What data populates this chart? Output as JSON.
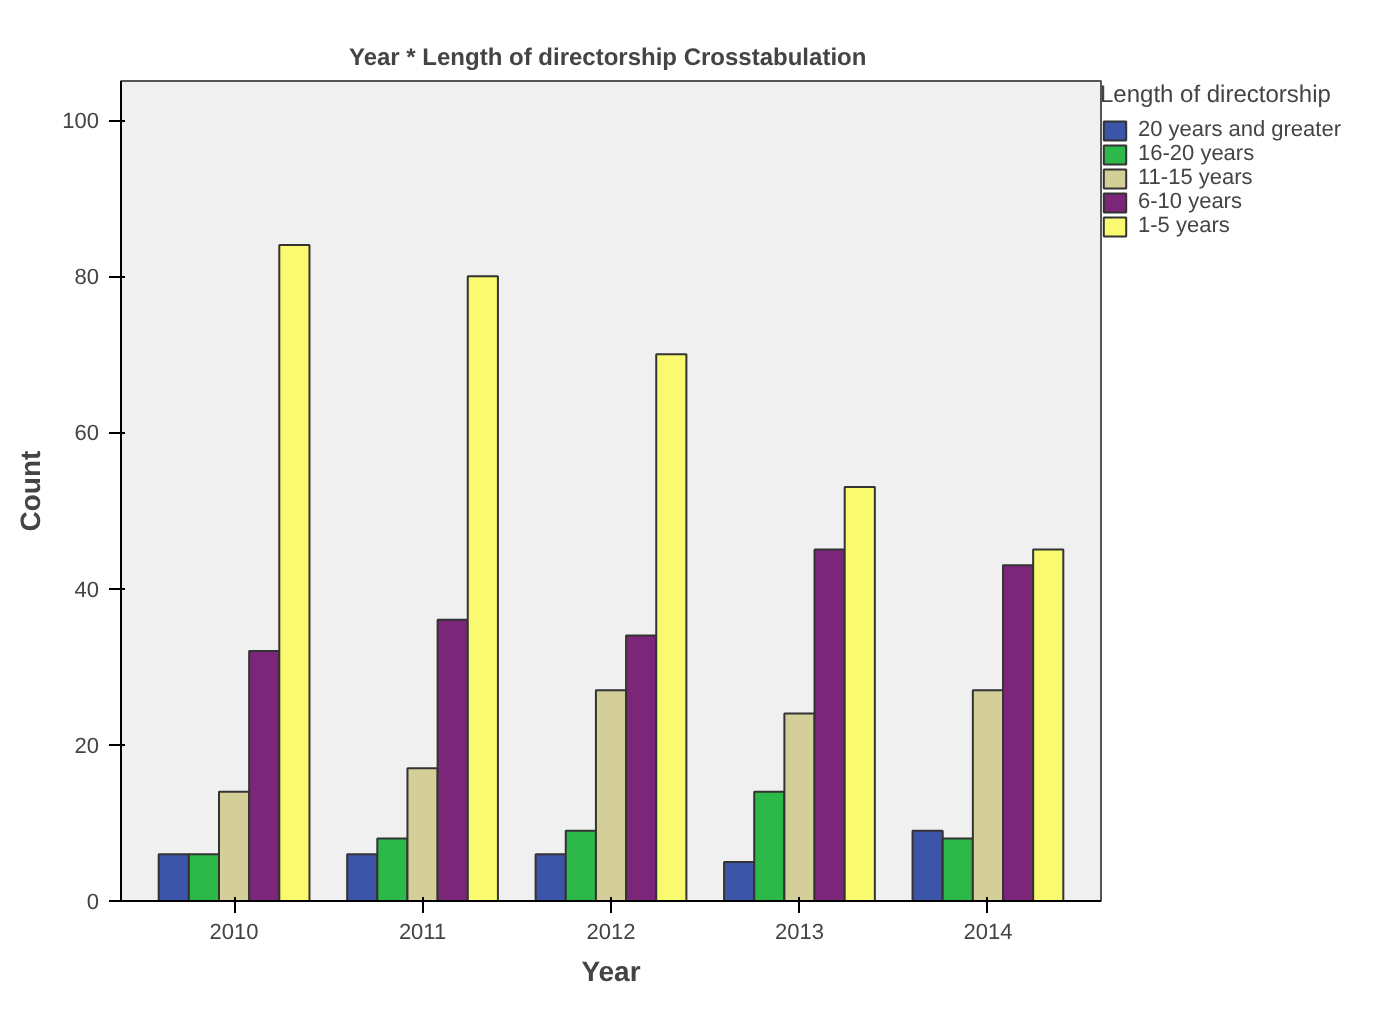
{
  "chart_data": {
    "type": "bar",
    "title": "Year * Length of directorship  Crosstabulation",
    "xlabel": "Year",
    "ylabel": "Count",
    "legend_title": "Length of directorship",
    "categories": [
      "2010",
      "2011",
      "2012",
      "2013",
      "2014"
    ],
    "series": [
      {
        "name": "20 years and greater",
        "color": "#3c55a8",
        "values": [
          6,
          6,
          6,
          5,
          9
        ]
      },
      {
        "name": "16-20 years",
        "color": "#2db84a",
        "values": [
          6,
          8,
          9,
          14,
          8
        ]
      },
      {
        "name": "11-15 years",
        "color": "#d4cf98",
        "values": [
          14,
          17,
          27,
          24,
          27
        ]
      },
      {
        "name": "6-10 years",
        "color": "#7b2678",
        "values": [
          32,
          36,
          34,
          45,
          43
        ]
      },
      {
        "name": "1-5 years",
        "color": "#fafa70",
        "values": [
          84,
          80,
          70,
          53,
          45
        ]
      }
    ],
    "ylim": [
      0,
      105
    ],
    "yticks": [
      0,
      20,
      40,
      60,
      80,
      100
    ],
    "grid": false,
    "legend": "top right"
  }
}
